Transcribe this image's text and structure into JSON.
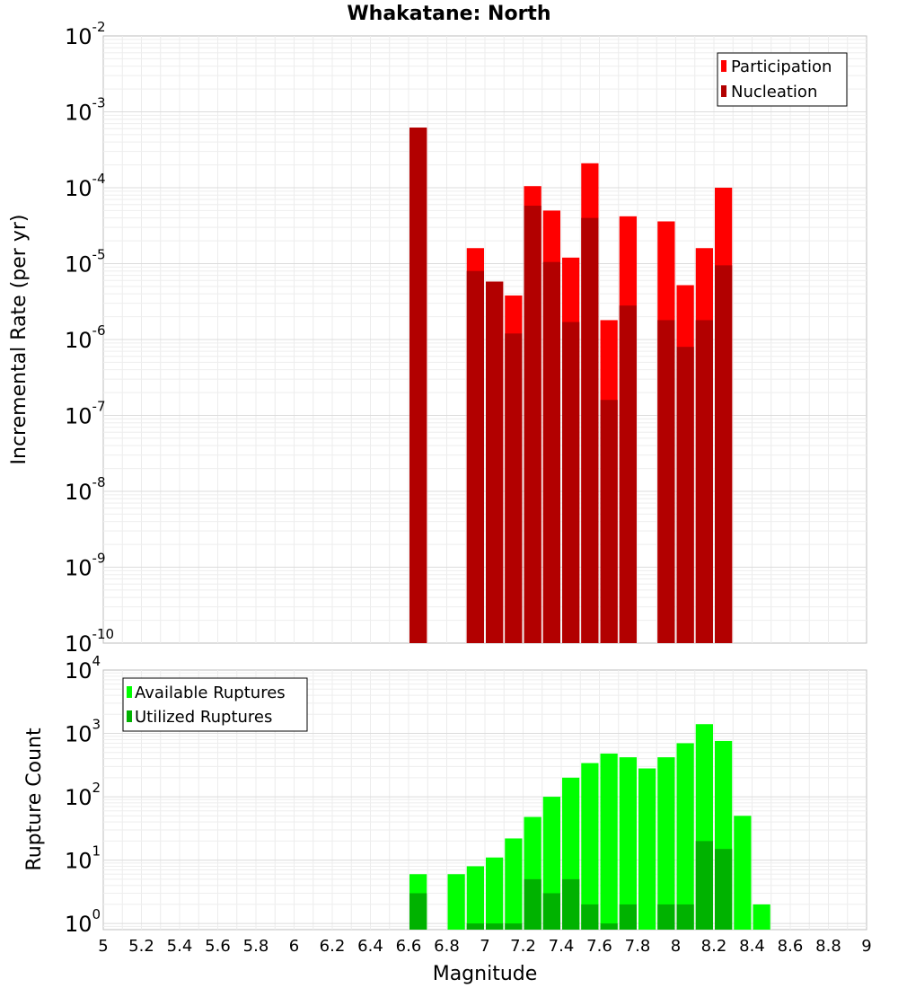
{
  "title": "Whakatane: North",
  "xlabel": "Magnitude",
  "x_ticks": [
    "5",
    "5.2",
    "5.4",
    "5.6",
    "5.8",
    "6",
    "6.2",
    "6.4",
    "6.6",
    "6.8",
    "7",
    "7.2",
    "7.4",
    "7.6",
    "7.8",
    "8",
    "8.2",
    "8.4",
    "8.6",
    "8.8",
    "9"
  ],
  "colors": {
    "participation": "#ff0000",
    "nucleation": "#b20000",
    "available": "#00ff00",
    "utilized": "#00b200"
  },
  "chart_data": [
    {
      "type": "bar",
      "scale": "log",
      "ylabel": "Incremental Rate (per yr)",
      "xlim": [
        5,
        9
      ],
      "ylim": [
        1e-10,
        0.01
      ],
      "y_ticks": [
        {
          "base": "10",
          "exp": "-10"
        },
        {
          "base": "10",
          "exp": "-9"
        },
        {
          "base": "10",
          "exp": "-8"
        },
        {
          "base": "10",
          "exp": "-7"
        },
        {
          "base": "10",
          "exp": "-6"
        },
        {
          "base": "10",
          "exp": "-5"
        },
        {
          "base": "10",
          "exp": "-4"
        },
        {
          "base": "10",
          "exp": "-3"
        },
        {
          "base": "10",
          "exp": "-2"
        }
      ],
      "legend_position": "top-right",
      "grid": true,
      "x": [
        6.65,
        6.95,
        7.05,
        7.15,
        7.25,
        7.35,
        7.45,
        7.55,
        7.65,
        7.75,
        7.95,
        8.05,
        8.15,
        8.25
      ],
      "series": [
        {
          "name": "Participation",
          "values": [
            0.00062,
            1.6e-05,
            5.8e-06,
            3.8e-06,
            0.000105,
            5e-05,
            1.2e-05,
            0.00021,
            1.8e-06,
            4.2e-05,
            3.6e-05,
            5.2e-06,
            1.6e-05,
            0.0001
          ]
        },
        {
          "name": "Nucleation",
          "values": [
            0.00062,
            8e-06,
            5.8e-06,
            1.2e-06,
            5.8e-05,
            1.05e-05,
            1.7e-06,
            4e-05,
            1.6e-07,
            2.8e-06,
            1.8e-06,
            8e-07,
            1.8e-06,
            9.5e-06
          ]
        }
      ]
    },
    {
      "type": "bar",
      "scale": "log",
      "ylabel": "Rupture Count",
      "xlim": [
        5,
        9
      ],
      "ylim": [
        0.8,
        10000
      ],
      "y_ticks": [
        {
          "base": "10",
          "exp": "0"
        },
        {
          "base": "10",
          "exp": "1"
        },
        {
          "base": "10",
          "exp": "2"
        },
        {
          "base": "10",
          "exp": "3"
        },
        {
          "base": "10",
          "exp": "4"
        }
      ],
      "legend_position": "top-left",
      "grid": true,
      "x": [
        6.65,
        6.85,
        6.95,
        7.05,
        7.15,
        7.25,
        7.35,
        7.45,
        7.55,
        7.65,
        7.75,
        7.85,
        7.95,
        8.05,
        8.15,
        8.25,
        8.35,
        8.45
      ],
      "series": [
        {
          "name": "Available Ruptures",
          "values": [
            6,
            6,
            8,
            11,
            22,
            48,
            100,
            200,
            340,
            480,
            420,
            280,
            420,
            700,
            1400,
            760,
            50,
            2
          ]
        },
        {
          "name": "Utilized Ruptures",
          "values": [
            3,
            0,
            1,
            1,
            1,
            5,
            3,
            5,
            2,
            1,
            2,
            0,
            2,
            2,
            20,
            15,
            0,
            0
          ]
        }
      ]
    }
  ]
}
